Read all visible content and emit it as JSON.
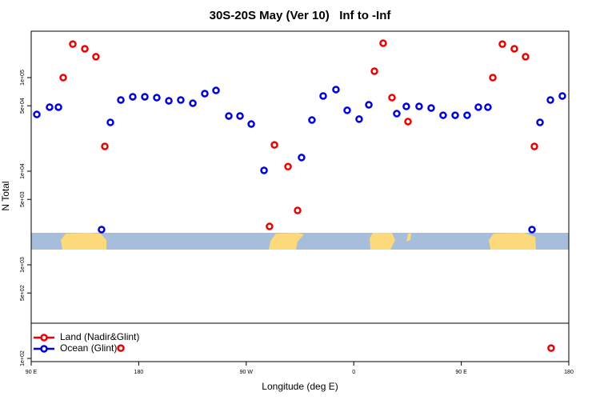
{
  "chart_data": {
    "type": "scatter",
    "title": "30S-20S May (Ver 10)   Inf to -Inf",
    "x_label": "Longitude (deg E)",
    "y_label": "N Total",
    "xlim": [
      90,
      540
    ],
    "xticks": [
      {
        "value": 90,
        "label": "90 E"
      },
      180,
      {
        "value": 270,
        "label": "90 W"
      },
      {
        "value": 360,
        "label": "0"
      },
      {
        "value": 450,
        "label": "90 E"
      },
      {
        "value": 540,
        "label": "180"
      }
    ],
    "ylim": [
      92.5,
      313000
    ],
    "log_y": true,
    "yticks": [
      {
        "value": 100,
        "label": "1e+02"
      },
      {
        "value": 500,
        "label": "5e+02"
      },
      {
        "value": 1000,
        "label": "1e+03"
      },
      {
        "value": 5000,
        "label": "5e+03"
      },
      {
        "value": 10000,
        "label": "1e+04"
      },
      {
        "value": 50000,
        "label": "5e+04"
      },
      {
        "value": 100000,
        "label": "1e+05"
      }
    ],
    "legend": "bottom left",
    "series": [
      {
        "name": "Land (Nadir&Glint)",
        "color": "#ee0000",
        "x": [
          116.8,
          124.8,
          134.9,
          144.2,
          151.6,
          165,
          289.5,
          293.6,
          305,
          313,
          377.3,
          384.6,
          392,
          405.4,
          476.4,
          484.4,
          494.4,
          503.8,
          511.2,
          525.2
        ],
        "values": [
          100000,
          228000,
          203000,
          167000,
          18400,
          129,
          2570,
          19100,
          11200,
          3810,
          117000,
          233000,
          61100,
          33900,
          100000,
          228000,
          203000,
          167000,
          18400,
          129
        ]
      },
      {
        "name": "Ocean (Glint)",
        "color": "#0000dd",
        "x": [
          94.7,
          105.4,
          112.8,
          148.9,
          156.3,
          165,
          175,
          185.1,
          195.1,
          205.2,
          215.2,
          225.3,
          235.3,
          244.7,
          255.4,
          264.8,
          274.2,
          284.9,
          316.3,
          325,
          334.4,
          345.1,
          354.5,
          364.5,
          372.6,
          396,
          404,
          414.7,
          424.8,
          434.8,
          444.9,
          454.9,
          464.3,
          472.3,
          509.2,
          515.9,
          524.6,
          534.6
        ],
        "values": [
          40400,
          48300,
          48300,
          2380,
          33200,
          57600,
          62400,
          62400,
          61100,
          56500,
          57600,
          53200,
          67400,
          72900,
          38900,
          38900,
          31900,
          10200,
          14000,
          35200,
          63600,
          74500,
          44700,
          36000,
          51200,
          41200,
          49200,
          49200,
          47300,
          39600,
          39600,
          39600,
          48300,
          48300,
          2380,
          33200,
          57600,
          63600
        ]
      }
    ]
  }
}
